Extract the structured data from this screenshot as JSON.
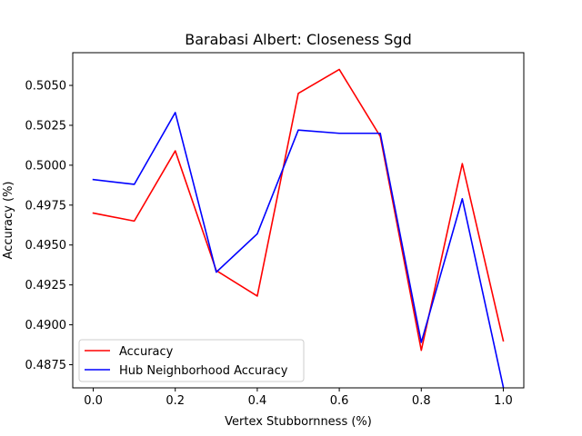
{
  "chart_data": {
    "type": "line",
    "title": "Barabasi Albert: Closeness Sgd",
    "xlabel": "Vertex Stubbornness (%)",
    "ylabel": "Accuracy (%)",
    "x": [
      0.0,
      0.1,
      0.2,
      0.3,
      0.4,
      0.5,
      0.6,
      0.7,
      0.8,
      0.9,
      1.0
    ],
    "xlim": [
      -0.05,
      1.05
    ],
    "ylim": [
      0.48605,
      0.50705
    ],
    "xticks": [
      0.0,
      0.2,
      0.4,
      0.6,
      0.8,
      1.0
    ],
    "xtick_labels": [
      "0.0",
      "0.2",
      "0.4",
      "0.6",
      "0.8",
      "1.0"
    ],
    "yticks": [
      0.4875,
      0.49,
      0.4925,
      0.495,
      0.4975,
      0.5,
      0.5025,
      0.505
    ],
    "ytick_labels": [
      "0.4875",
      "0.4900",
      "0.4925",
      "0.4950",
      "0.4975",
      "0.5000",
      "0.5025",
      "0.5050"
    ],
    "grid": false,
    "legend_position": "lower-left",
    "series": [
      {
        "name": "Accuracy",
        "color": "#ff0000",
        "values": [
          0.497,
          0.4965,
          0.5009,
          0.4934,
          0.4918,
          0.5045,
          0.506,
          0.5018,
          0.4884,
          0.5001,
          0.489
        ]
      },
      {
        "name": "Hub Neighborhood Accuracy",
        "color": "#0000ff",
        "values": [
          0.4991,
          0.4988,
          0.5033,
          0.4933,
          0.4957,
          0.5022,
          0.502,
          0.502,
          0.4889,
          0.4979,
          0.4861
        ]
      }
    ]
  }
}
